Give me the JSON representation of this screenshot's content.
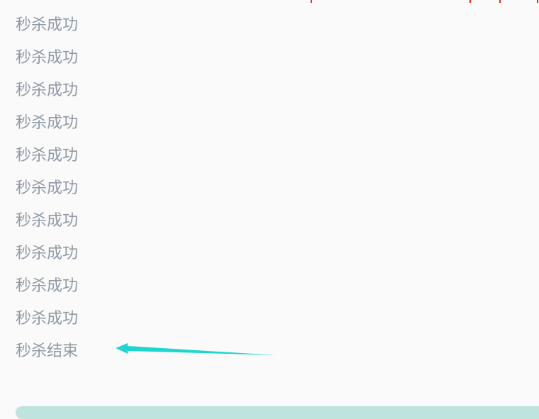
{
  "console": {
    "lines": [
      "秒杀成功",
      "秒杀成功",
      "秒杀成功",
      "秒杀成功",
      "秒杀成功",
      "秒杀成功",
      "秒杀成功",
      "秒杀成功",
      "秒杀成功",
      "秒杀成功",
      "秒杀结束"
    ]
  },
  "colors": {
    "text": "#8f9aa6",
    "arrow": "#1fd5cf",
    "scrollbar": "#bfe3dd",
    "background": "#fafafa"
  },
  "icons": {
    "annotation": "arrow-left-icon"
  }
}
